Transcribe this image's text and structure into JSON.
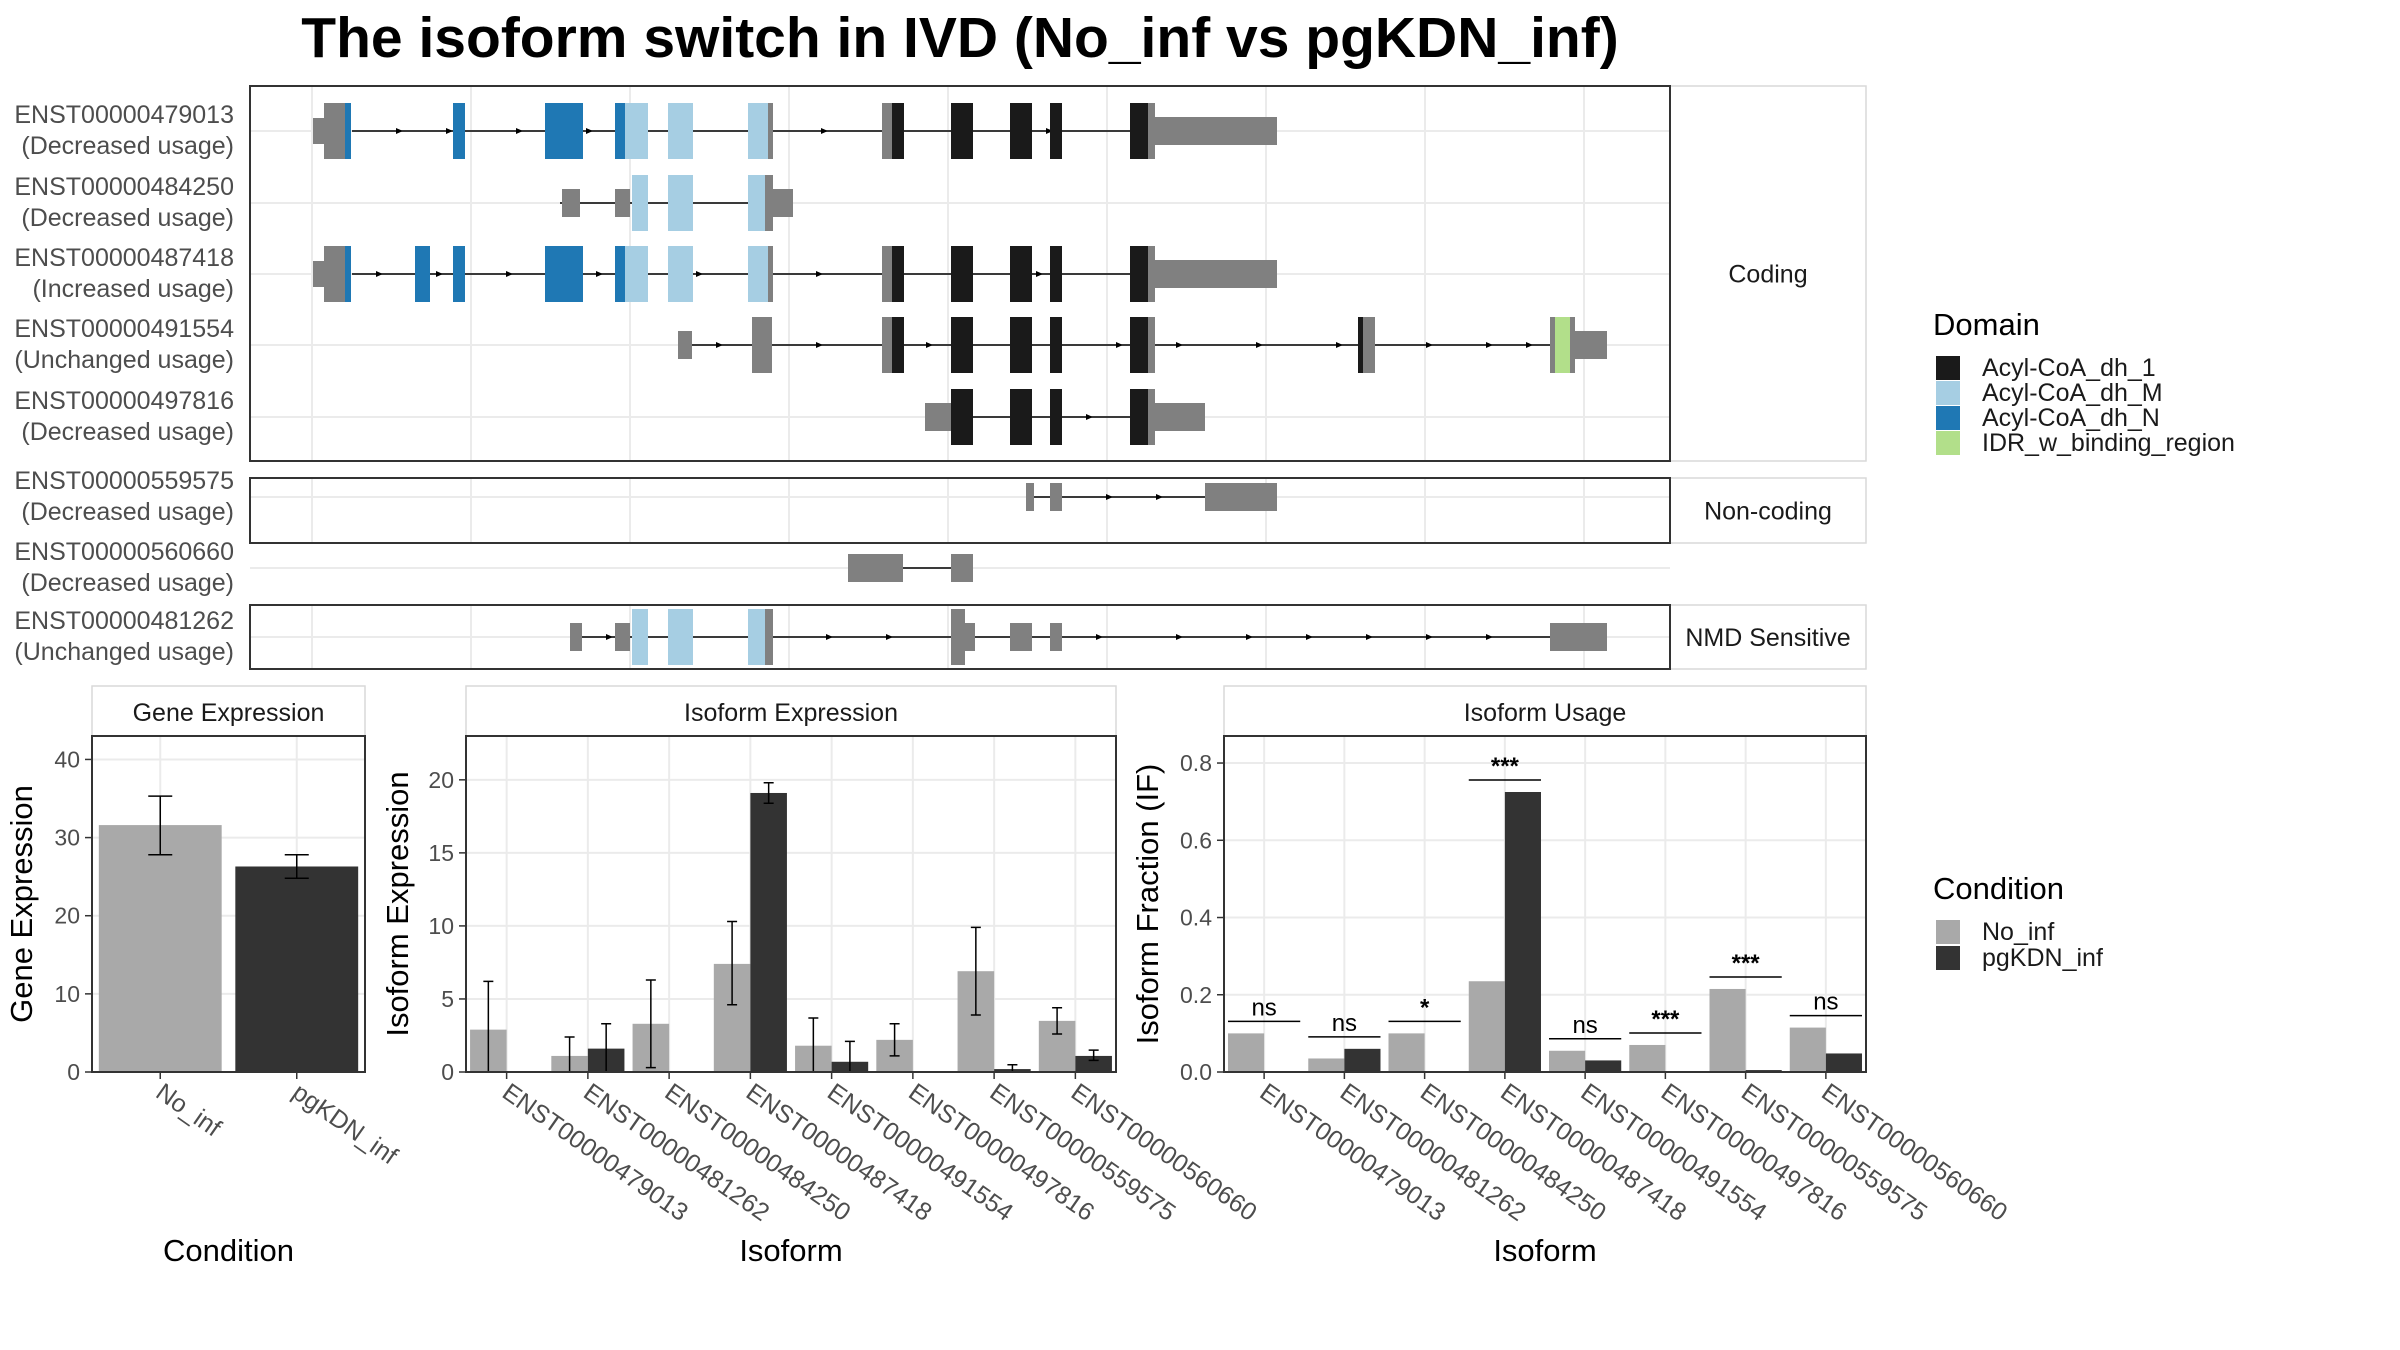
{
  "title": "The isoform switch in IVD (No_inf vs pgKDN_inf)",
  "colors": {
    "Acyl-CoA_dh_1": "#1a1a1a",
    "Acyl-CoA_dh_M": "#a6cee3",
    "Acyl-CoA_dh_N": "#1f78b4",
    "IDR_w_binding_region": "#b2df8a",
    "utr": "#808080",
    "No_inf": "#a9a9a9",
    "pgKDN_inf": "#333333"
  },
  "structure": {
    "facets": [
      {
        "label": "Coding",
        "rows": [
          {
            "id": "ENST00000479013",
            "usage": "(Decreased usage)"
          },
          {
            "id": "ENST00000484250",
            "usage": "(Decreased usage)"
          },
          {
            "id": "ENST00000487418",
            "usage": "(Increased usage)"
          },
          {
            "id": "ENST00000491554",
            "usage": "(Unchanged usage)"
          },
          {
            "id": "ENST00000497816",
            "usage": "(Decreased usage)"
          }
        ]
      },
      {
        "label": "Non-coding",
        "rows": [
          {
            "id": "ENST00000559575",
            "usage": "(Decreased usage)"
          },
          {
            "id": "ENST00000560660",
            "usage": "(Decreased usage)"
          }
        ]
      },
      {
        "label": "NMD Sensitive",
        "rows": [
          {
            "id": "ENST00000481262",
            "usage": "(Unchanged usage)"
          }
        ]
      }
    ]
  },
  "legend_domain": {
    "title": "Domain",
    "items": [
      "Acyl-CoA_dh_1",
      "Acyl-CoA_dh_M",
      "Acyl-CoA_dh_N",
      "IDR_w_binding_region"
    ]
  },
  "legend_condition": {
    "title": "Condition",
    "items": [
      "No_inf",
      "pgKDN_inf"
    ]
  },
  "chart_data": [
    {
      "type": "bar",
      "title": "Gene Expression",
      "xlabel": "Condition",
      "ylabel": "Gene Expression",
      "ylim": [
        0,
        43
      ],
      "yticks": [
        0,
        10,
        20,
        30,
        40
      ],
      "categories": [
        "No_inf",
        "pgKDN_inf"
      ],
      "values": [
        31.6,
        26.3
      ],
      "error_low": [
        27.8,
        24.8
      ],
      "error_high": [
        35.3,
        27.8
      ]
    },
    {
      "type": "bar",
      "title": "Isoform Expression",
      "xlabel": "Isoform",
      "ylabel": "Isoform Expression",
      "ylim": [
        0,
        23
      ],
      "yticks": [
        0,
        5,
        10,
        15,
        20
      ],
      "categories": [
        "ENST00000479013",
        "ENST00000481262",
        "ENST00000484250",
        "ENST00000487418",
        "ENST00000491554",
        "ENST00000497816",
        "ENST00000559575",
        "ENST00000560660"
      ],
      "series": [
        {
          "name": "No_inf",
          "values": [
            2.9,
            1.1,
            3.3,
            7.4,
            1.8,
            2.2,
            6.9,
            3.5
          ],
          "error_low": [
            0.0,
            0.0,
            0.3,
            4.6,
            0.0,
            1.1,
            3.9,
            2.6
          ],
          "error_high": [
            6.2,
            2.4,
            6.3,
            10.3,
            3.7,
            3.3,
            9.9,
            4.4
          ]
        },
        {
          "name": "pgKDN_inf",
          "values": [
            0.0,
            1.6,
            0.0,
            19.1,
            0.7,
            0.0,
            0.2,
            1.1
          ],
          "error_low": [
            0.0,
            0.0,
            0.0,
            18.4,
            0.0,
            0.0,
            0.0,
            0.8
          ],
          "error_high": [
            0.0,
            3.3,
            0.0,
            19.8,
            2.1,
            0.0,
            0.5,
            1.5
          ]
        }
      ]
    },
    {
      "type": "bar",
      "title": "Isoform Usage",
      "xlabel": "Isoform",
      "ylabel": "Isoform Fraction (IF)",
      "ylim": [
        0,
        0.87
      ],
      "yticks": [
        0.0,
        0.2,
        0.4,
        0.6,
        0.8
      ],
      "ytick_labels": [
        "0.0",
        "0.2",
        "0.4",
        "0.6",
        "0.8"
      ],
      "categories": [
        "ENST00000479013",
        "ENST00000481262",
        "ENST00000484250",
        "ENST00000487418",
        "ENST00000491554",
        "ENST00000497816",
        "ENST00000559575",
        "ENST00000560660"
      ],
      "series": [
        {
          "name": "No_inf",
          "values": [
            0.1,
            0.035,
            0.1,
            0.235,
            0.055,
            0.07,
            0.215,
            0.115
          ]
        },
        {
          "name": "pgKDN_inf",
          "values": [
            0.0,
            0.06,
            0.0,
            0.725,
            0.03,
            0.0,
            0.005,
            0.048
          ]
        }
      ],
      "significance": [
        "ns",
        "ns",
        "*",
        "***",
        "ns",
        "***",
        "***",
        "ns"
      ]
    }
  ]
}
